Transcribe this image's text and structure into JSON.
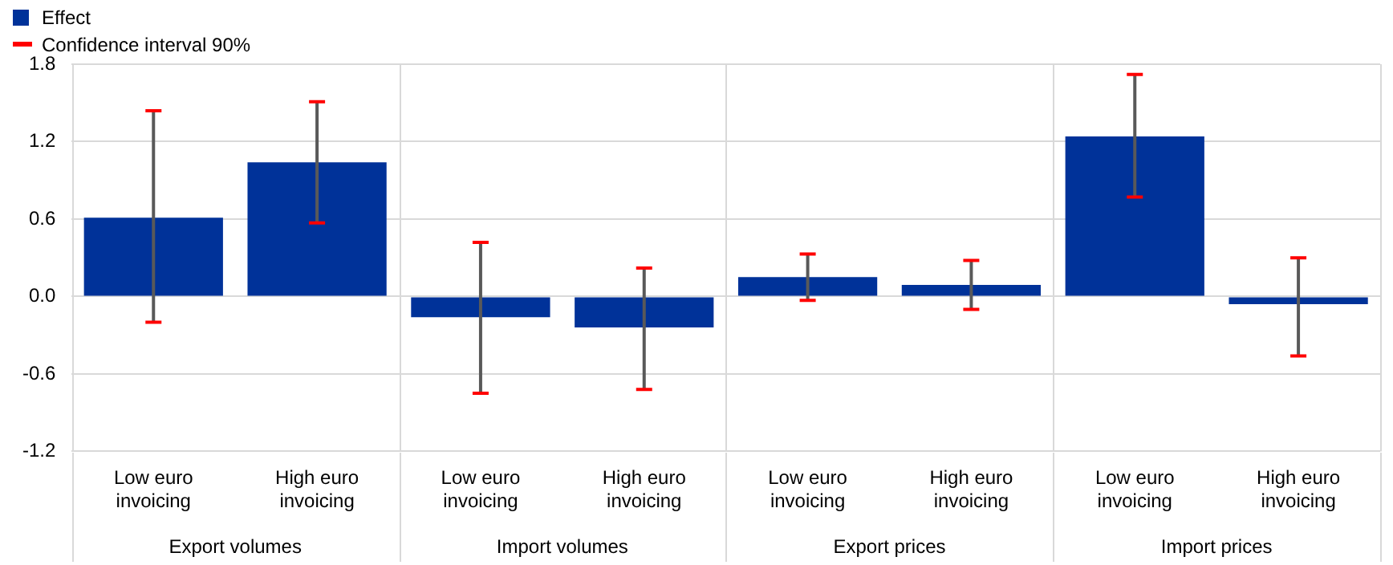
{
  "chart_data": {
    "type": "bar",
    "categories": [
      "Low euro invoicing",
      "High euro invoicing",
      "Low euro invoicing",
      "High euro invoicing",
      "Low euro invoicing",
      "High euro invoicing",
      "Low euro invoicing",
      "High euro invoicing"
    ],
    "series": [
      {
        "name": "Effect",
        "color": "#003299",
        "values": [
          0.61,
          1.04,
          -0.16,
          -0.24,
          0.15,
          0.09,
          1.24,
          -0.06
        ],
        "errors": [
          [
            -0.2,
            1.44
          ],
          [
            0.57,
            1.51
          ],
          [
            -0.75,
            0.42
          ],
          [
            -0.72,
            0.22
          ],
          [
            -0.03,
            0.33
          ],
          [
            -0.1,
            0.28
          ],
          [
            0.77,
            1.72
          ],
          [
            -0.46,
            0.3
          ]
        ]
      }
    ],
    "annotations": [
      "Export volumes",
      "Import volumes",
      "Export prices",
      "Import prices",
      "Confidence interval 90%"
    ],
    "ylim": [
      -1.2,
      1.8
    ],
    "yticks": [
      -1.2,
      -0.6,
      {
        "value": 0,
        "label": "0.0"
      },
      0.6,
      1.2,
      1.8
    ],
    "grid": "y",
    "legend": "top left"
  }
}
